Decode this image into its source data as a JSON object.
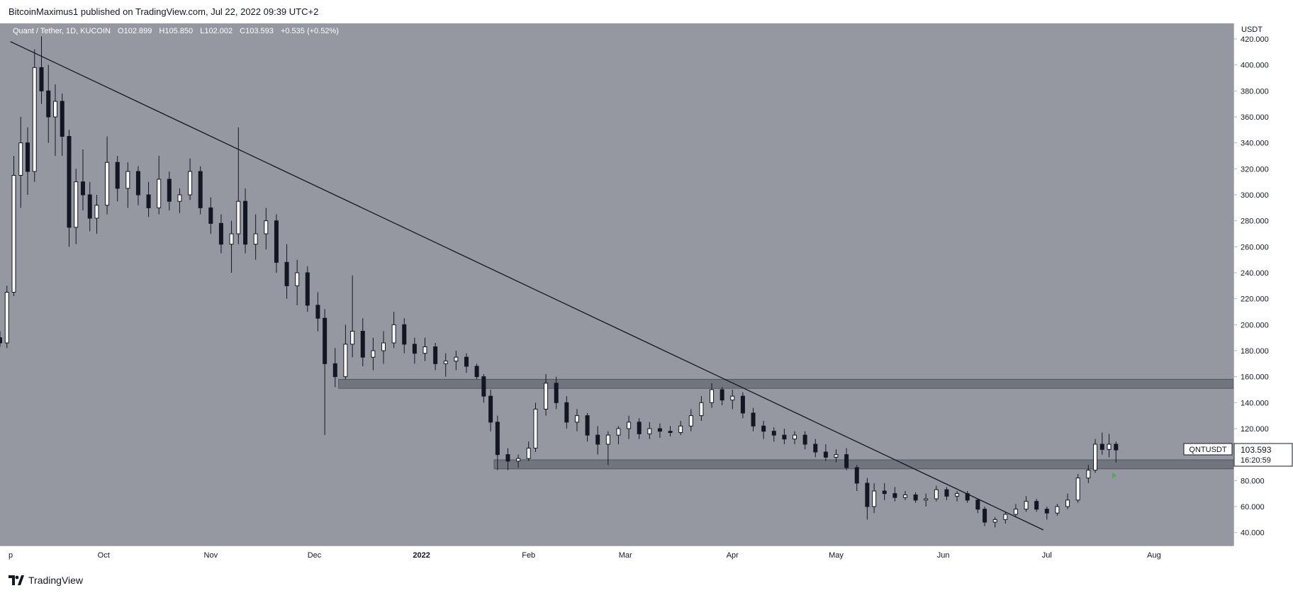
{
  "header": {
    "publisher_line": "BitcoinMaximus1 published on TradingView.com, Jul 22, 2022 09:39 UTC+2"
  },
  "legend": {
    "symbol": "Quant / Tether, 1D, KUCOIN",
    "o_label": "O",
    "o_value": "102.899",
    "h_label": "H",
    "h_value": "105.850",
    "l_label": "L",
    "l_value": "102.002",
    "c_label": "C",
    "c_value": "103.593",
    "change": "+0.535 (+0.52%)"
  },
  "axis": {
    "currency": "USDT"
  },
  "price_tag": {
    "symbol": "QNTUSDT",
    "price": "103.593",
    "countdown": "16:20:59"
  },
  "footer": {
    "brand": "TradingView"
  },
  "colors": {
    "plot_bg": "#9598a1",
    "zone": "#6b6f78",
    "candle": "#131722",
    "axis_bg": "#ffffff",
    "price_badge": "#ffffff",
    "marker": "#4caf50"
  },
  "chart_data": {
    "type": "candlestick",
    "symbol": "Quant / Tether, 1D, KUCOIN",
    "y_unit": "USDT",
    "ylim": [
      30,
      432
    ],
    "y_ticks": [
      40,
      60,
      80,
      100,
      120,
      140,
      160,
      180,
      200,
      220,
      240,
      260,
      280,
      300,
      320,
      340,
      360,
      380,
      400,
      420
    ],
    "x_ticks": [
      {
        "label": "p",
        "date": "2021-09-01"
      },
      {
        "label": "Oct",
        "date": "2021-10-01"
      },
      {
        "label": "Nov",
        "date": "2021-11-01"
      },
      {
        "label": "Dec",
        "date": "2021-12-01"
      },
      {
        "label": "2022",
        "date": "2022-01-01"
      },
      {
        "label": "Feb",
        "date": "2022-02-01"
      },
      {
        "label": "Mar",
        "date": "2022-03-01"
      },
      {
        "label": "Apr",
        "date": "2022-04-01"
      },
      {
        "label": "May",
        "date": "2022-05-01"
      },
      {
        "label": "Jun",
        "date": "2022-06-01"
      },
      {
        "label": "Jul",
        "date": "2022-07-01"
      },
      {
        "label": "Aug",
        "date": "2022-08-01"
      }
    ],
    "xlim": [
      "2021-09-01",
      "2022-08-24"
    ],
    "last_price": 103.593,
    "grid": false,
    "support_zones": [
      {
        "from_date": "2021-12-08",
        "low": 151,
        "high": 158
      },
      {
        "from_date": "2022-01-22",
        "low": 89,
        "high": 96
      }
    ],
    "trendline": {
      "start": {
        "date": "2021-09-04",
        "price": 418
      },
      "end": {
        "date": "2022-06-30",
        "price": 42
      }
    },
    "candles": [
      [
        "2021-09-01",
        190,
        195,
        183,
        186
      ],
      [
        "2021-09-03",
        186,
        230,
        182,
        225
      ],
      [
        "2021-09-05",
        225,
        330,
        222,
        315
      ],
      [
        "2021-09-07",
        315,
        360,
        290,
        340
      ],
      [
        "2021-09-09",
        340,
        352,
        300,
        318
      ],
      [
        "2021-09-11",
        318,
        412,
        310,
        398
      ],
      [
        "2021-09-13",
        398,
        422,
        370,
        380
      ],
      [
        "2021-09-15",
        380,
        400,
        340,
        360
      ],
      [
        "2021-09-17",
        360,
        385,
        330,
        372
      ],
      [
        "2021-09-19",
        372,
        378,
        330,
        345
      ],
      [
        "2021-09-21",
        345,
        350,
        260,
        275
      ],
      [
        "2021-09-23",
        275,
        320,
        262,
        310
      ],
      [
        "2021-09-25",
        310,
        335,
        288,
        300
      ],
      [
        "2021-09-27",
        300,
        310,
        272,
        282
      ],
      [
        "2021-09-29",
        282,
        300,
        270,
        292
      ],
      [
        "2021-10-02",
        292,
        345,
        285,
        325
      ],
      [
        "2021-10-05",
        325,
        330,
        295,
        305
      ],
      [
        "2021-10-08",
        305,
        325,
        290,
        318
      ],
      [
        "2021-10-11",
        318,
        322,
        292,
        300
      ],
      [
        "2021-10-14",
        300,
        310,
        283,
        290
      ],
      [
        "2021-10-17",
        290,
        330,
        285,
        312
      ],
      [
        "2021-10-20",
        312,
        318,
        288,
        295
      ],
      [
        "2021-10-23",
        295,
        305,
        286,
        300
      ],
      [
        "2021-10-26",
        300,
        328,
        296,
        318
      ],
      [
        "2021-10-29",
        318,
        322,
        285,
        290
      ],
      [
        "2021-11-01",
        290,
        298,
        270,
        278
      ],
      [
        "2021-11-04",
        278,
        285,
        255,
        262
      ],
      [
        "2021-11-07",
        262,
        280,
        240,
        270
      ],
      [
        "2021-11-09",
        270,
        352,
        262,
        295
      ],
      [
        "2021-11-11",
        295,
        305,
        255,
        262
      ],
      [
        "2021-11-14",
        262,
        285,
        250,
        270
      ],
      [
        "2021-11-17",
        270,
        290,
        258,
        280
      ],
      [
        "2021-11-20",
        280,
        285,
        240,
        248
      ],
      [
        "2021-11-23",
        248,
        262,
        220,
        230
      ],
      [
        "2021-11-26",
        230,
        250,
        215,
        240
      ],
      [
        "2021-11-29",
        240,
        245,
        210,
        215
      ],
      [
        "2021-12-02",
        215,
        225,
        195,
        205
      ],
      [
        "2021-12-04",
        205,
        212,
        115,
        170
      ],
      [
        "2021-12-07",
        170,
        182,
        152,
        160
      ],
      [
        "2021-12-10",
        160,
        200,
        158,
        185
      ],
      [
        "2021-12-12",
        185,
        238,
        175,
        195
      ],
      [
        "2021-12-15",
        195,
        205,
        168,
        175
      ],
      [
        "2021-12-18",
        175,
        190,
        165,
        180
      ],
      [
        "2021-12-21",
        180,
        195,
        170,
        186
      ],
      [
        "2021-12-24",
        186,
        210,
        182,
        200
      ],
      [
        "2021-12-27",
        200,
        205,
        178,
        185
      ],
      [
        "2021-12-30",
        185,
        190,
        170,
        178
      ],
      [
        "2022-01-02",
        178,
        190,
        172,
        183
      ],
      [
        "2022-01-05",
        183,
        186,
        165,
        170
      ],
      [
        "2022-01-08",
        170,
        178,
        160,
        172
      ],
      [
        "2022-01-11",
        172,
        180,
        165,
        175
      ],
      [
        "2022-01-14",
        175,
        178,
        163,
        168
      ],
      [
        "2022-01-17",
        168,
        170,
        158,
        160
      ],
      [
        "2022-01-19",
        160,
        162,
        140,
        145
      ],
      [
        "2022-01-21",
        145,
        150,
        118,
        125
      ],
      [
        "2022-01-23",
        125,
        130,
        88,
        100
      ],
      [
        "2022-01-26",
        100,
        105,
        88,
        95
      ],
      [
        "2022-01-29",
        95,
        100,
        90,
        97
      ],
      [
        "2022-02-01",
        97,
        110,
        95,
        105
      ],
      [
        "2022-02-03",
        105,
        140,
        102,
        135
      ],
      [
        "2022-02-06",
        135,
        162,
        130,
        155
      ],
      [
        "2022-02-09",
        155,
        160,
        135,
        140
      ],
      [
        "2022-02-12",
        140,
        145,
        120,
        125
      ],
      [
        "2022-02-15",
        125,
        135,
        118,
        130
      ],
      [
        "2022-02-18",
        130,
        132,
        110,
        115
      ],
      [
        "2022-02-21",
        115,
        122,
        100,
        108
      ],
      [
        "2022-02-24",
        108,
        118,
        92,
        115
      ],
      [
        "2022-02-27",
        115,
        122,
        108,
        120
      ],
      [
        "2022-03-02",
        120,
        130,
        112,
        125
      ],
      [
        "2022-03-05",
        125,
        128,
        112,
        116
      ],
      [
        "2022-03-08",
        116,
        125,
        112,
        120
      ],
      [
        "2022-03-11",
        120,
        124,
        113,
        118
      ],
      [
        "2022-03-14",
        118,
        122,
        114,
        117
      ],
      [
        "2022-03-17",
        117,
        126,
        115,
        122
      ],
      [
        "2022-03-20",
        122,
        135,
        118,
        130
      ],
      [
        "2022-03-23",
        130,
        145,
        126,
        140
      ],
      [
        "2022-03-26",
        140,
        155,
        136,
        150
      ],
      [
        "2022-03-29",
        150,
        152,
        138,
        142
      ],
      [
        "2022-04-01",
        142,
        150,
        135,
        145
      ],
      [
        "2022-04-04",
        145,
        148,
        128,
        132
      ],
      [
        "2022-04-07",
        132,
        136,
        118,
        122
      ],
      [
        "2022-04-10",
        122,
        126,
        112,
        118
      ],
      [
        "2022-04-13",
        118,
        121,
        110,
        115
      ],
      [
        "2022-04-16",
        115,
        120,
        108,
        112
      ],
      [
        "2022-04-19",
        112,
        118,
        108,
        115
      ],
      [
        "2022-04-22",
        115,
        118,
        104,
        108
      ],
      [
        "2022-04-25",
        108,
        112,
        98,
        102
      ],
      [
        "2022-04-28",
        102,
        108,
        95,
        98
      ],
      [
        "2022-05-01",
        98,
        104,
        94,
        100
      ],
      [
        "2022-05-04",
        100,
        105,
        88,
        90
      ],
      [
        "2022-05-07",
        90,
        92,
        72,
        78
      ],
      [
        "2022-05-10",
        78,
        82,
        50,
        60
      ],
      [
        "2022-05-12",
        60,
        78,
        55,
        72
      ],
      [
        "2022-05-15",
        72,
        78,
        65,
        70
      ],
      [
        "2022-05-18",
        70,
        75,
        64,
        67
      ],
      [
        "2022-05-21",
        67,
        72,
        65,
        69
      ],
      [
        "2022-05-24",
        69,
        71,
        63,
        65
      ],
      [
        "2022-05-27",
        65,
        70,
        60,
        66
      ],
      [
        "2022-05-30",
        66,
        76,
        64,
        73
      ],
      [
        "2022-06-02",
        73,
        75,
        65,
        68
      ],
      [
        "2022-06-05",
        68,
        72,
        64,
        70
      ],
      [
        "2022-06-08",
        70,
        72,
        63,
        65
      ],
      [
        "2022-06-11",
        65,
        66,
        55,
        58
      ],
      [
        "2022-06-13",
        58,
        60,
        45,
        48
      ],
      [
        "2022-06-16",
        48,
        52,
        44,
        50
      ],
      [
        "2022-06-19",
        50,
        56,
        47,
        54
      ],
      [
        "2022-06-22",
        54,
        62,
        52,
        58
      ],
      [
        "2022-06-25",
        58,
        68,
        56,
        64
      ],
      [
        "2022-06-28",
        64,
        66,
        56,
        58
      ],
      [
        "2022-07-01",
        58,
        60,
        50,
        55
      ],
      [
        "2022-07-04",
        55,
        62,
        53,
        60
      ],
      [
        "2022-07-07",
        60,
        70,
        58,
        65
      ],
      [
        "2022-07-10",
        65,
        85,
        63,
        82
      ],
      [
        "2022-07-13",
        82,
        92,
        78,
        88
      ],
      [
        "2022-07-15",
        88,
        112,
        86,
        108
      ],
      [
        "2022-07-17",
        108,
        117,
        100,
        104
      ],
      [
        "2022-07-19",
        104,
        116,
        98,
        108
      ],
      [
        "2022-07-21",
        108,
        110,
        94,
        103.593
      ]
    ]
  }
}
